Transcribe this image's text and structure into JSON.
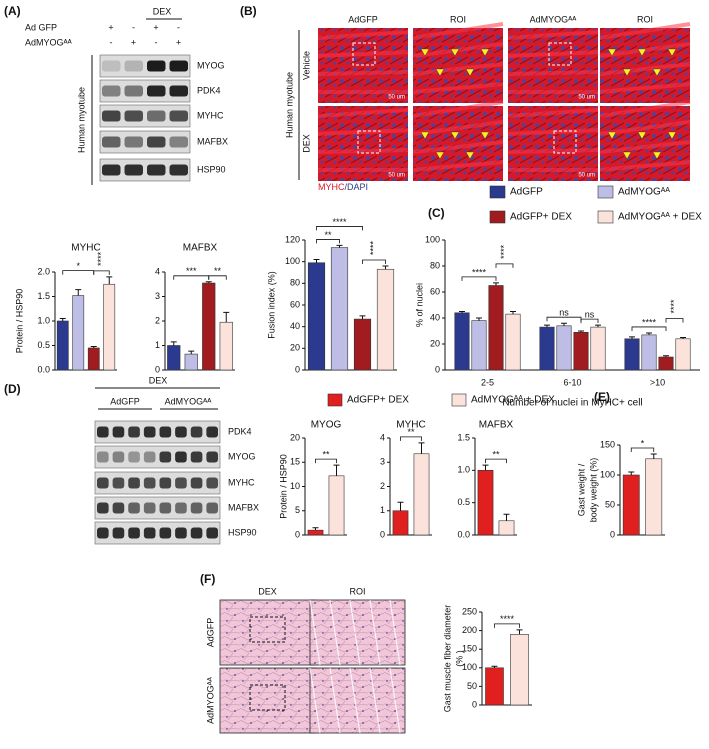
{
  "panel_labels": [
    "(A)",
    "(B)",
    "(C)",
    "(D)",
    "(E)",
    "(F)"
  ],
  "panel_A": {
    "header": "DEX",
    "treatments": [
      {
        "label": "Ad GFP",
        "signs": [
          "+",
          "-",
          "+",
          "-"
        ]
      },
      {
        "label": "AdMYOGᴬᴬ",
        "signs": [
          "-",
          "+",
          "-",
          "+"
        ]
      }
    ],
    "blots": [
      "MYOG",
      "PDK4",
      "MYHC",
      "MAFBX",
      "HSP90"
    ],
    "cell": "Human myotube"
  },
  "panel_B": {
    "columns": [
      "AdGFP",
      "ROI",
      "AdMYOGᴬᴬ",
      "ROI"
    ],
    "rows": [
      "Vehicle",
      "DEX"
    ],
    "cell": "Human myotube",
    "scale_bar": "50 um",
    "stain": [
      "MYHC",
      "/DAPI"
    ]
  },
  "panel_D": {
    "header": "DEX",
    "groups": [
      "AdGFP",
      "AdMYOGᴬᴬ"
    ],
    "blots": [
      "PDK4",
      "MYOG",
      "MYHC",
      "MAFBX",
      "HSP90"
    ],
    "legend": [
      {
        "name": "AdGFP+ DEX",
        "color": "#e0201e"
      },
      {
        "name": "AdMYOGᴬᴬ + DEX",
        "color": "#fbe3dc"
      }
    ]
  },
  "panel_F": {
    "columns": [
      "DEX",
      "ROI"
    ],
    "rows": [
      "AdGFP",
      "AdMYOGᴬᴬ"
    ]
  },
  "chart_data": [
    {
      "type": "bar",
      "title": "MYHC",
      "ylabel": [
        "Protein / HSP90"
      ],
      "values": [
        1.0,
        1.52,
        0.45,
        1.75
      ],
      "errors": [
        0.05,
        0.12,
        0.03,
        0.15
      ],
      "colors": [
        "#2b3a8f",
        "#bdbde6",
        "#a01c1f",
        "#fbe3dc"
      ],
      "ylim": [
        0,
        2
      ],
      "yticks": [
        {
          "value": 0,
          "label": "0.0"
        },
        0.5,
        {
          "value": 1,
          "label": "1.0"
        },
        1.5,
        {
          "value": 2,
          "label": "2.0"
        }
      ],
      "annotations": [
        "*",
        "****"
      ]
    },
    {
      "type": "bar",
      "title": "MAFBX",
      "values": [
        1.0,
        0.65,
        3.55,
        1.95
      ],
      "errors": [
        0.15,
        0.12,
        0.05,
        0.4
      ],
      "colors": [
        "#2b3a8f",
        "#bdbde6",
        "#a01c1f",
        "#fbe3dc"
      ],
      "ylim": [
        0,
        4
      ],
      "yticks": [
        0,
        1,
        2,
        3,
        4
      ],
      "annotations": [
        "***",
        "**"
      ]
    },
    {
      "type": "bar",
      "ylabel": [
        "Fusion index (%)"
      ],
      "values": [
        99,
        113,
        47,
        93
      ],
      "errors": [
        3,
        2,
        3,
        3
      ],
      "colors": [
        "#2b3a8f",
        "#bdbde6",
        "#a01c1f",
        "#fbe3dc"
      ],
      "ylim": [
        0,
        120
      ],
      "yticks": [
        0,
        20,
        40,
        60,
        80,
        100,
        120
      ],
      "annotations": [
        "**",
        "****",
        "****"
      ]
    },
    {
      "type": "bar",
      "ylabel": [
        "% of nuclei"
      ],
      "xlabel": "Number of nuclei in MyHC+ cell",
      "categories": [
        "2-5",
        "6-10",
        ">10"
      ],
      "series": [
        {
          "name": "AdGFP",
          "color": "#2b3a8f",
          "values": [
            44,
            33,
            24
          ],
          "errors": [
            1,
            1.5,
            1.5
          ]
        },
        {
          "name": "AdMYOGᴬᴬ",
          "color": "#bdbde6",
          "values": [
            38,
            34,
            27
          ],
          "errors": [
            2,
            2,
            1.5
          ]
        },
        {
          "name": "AdGFP+ DEX",
          "color": "#a01c1f",
          "values": [
            65,
            29,
            10
          ],
          "errors": [
            2,
            1,
            1
          ]
        },
        {
          "name": "AdMYOGᴬᴬ + DEX",
          "color": "#fbe3dc",
          "values": [
            43,
            33,
            24
          ],
          "errors": [
            2,
            1.5,
            1
          ]
        }
      ],
      "ylim": [
        0,
        100
      ],
      "yticks": [
        0,
        20,
        40,
        60,
        80,
        100
      ],
      "annotations": [
        "****",
        "****",
        "ns",
        "ns",
        "****",
        "****"
      ]
    },
    {
      "type": "bar",
      "title": "MYOG",
      "ylabel": [
        "Protein / HSP90"
      ],
      "values": [
        1,
        12.2
      ],
      "errors": [
        0.5,
        2.2
      ],
      "colors": [
        "#e0201e",
        "#fbe3dc"
      ],
      "ylim": [
        0,
        20
      ],
      "yticks": [
        0,
        5,
        10,
        15,
        20
      ],
      "annotations": [
        "**"
      ]
    },
    {
      "type": "bar",
      "title": "MYHC",
      "values": [
        1,
        3.35
      ],
      "errors": [
        0.35,
        0.45
      ],
      "colors": [
        "#e0201e",
        "#fbe3dc"
      ],
      "ylim": [
        0,
        4
      ],
      "yticks": [
        0,
        1,
        2,
        3,
        4
      ],
      "annotations": [
        "**"
      ]
    },
    {
      "type": "bar",
      "title": "MAFBX",
      "values": [
        1,
        0.22
      ],
      "errors": [
        0.08,
        0.1
      ],
      "colors": [
        "#e0201e",
        "#fbe3dc"
      ],
      "ylim": [
        0,
        1.5
      ],
      "yticks": [
        {
          "value": 0,
          "label": "0.0"
        },
        0.5,
        {
          "value": 1,
          "label": "1.0"
        },
        1.5
      ],
      "annotations": [
        "**"
      ]
    },
    {
      "type": "bar",
      "ylabel": [
        "Gast weight /",
        "body weight  (%)"
      ],
      "values": [
        100,
        127
      ],
      "errors": [
        5,
        8
      ],
      "colors": [
        "#e0201e",
        "#fbe3dc"
      ],
      "ylim": [
        0,
        150
      ],
      "yticks": [
        0,
        50,
        100,
        150
      ],
      "annotations": [
        "*"
      ]
    },
    {
      "type": "bar",
      "ylabel": [
        "Gast muscle fiber diameter",
        "(% )"
      ],
      "values": [
        100,
        190
      ],
      "errors": [
        4,
        12
      ],
      "colors": [
        "#e0201e",
        "#fbe3dc"
      ],
      "ylim": [
        0,
        250
      ],
      "yticks": [
        0,
        50,
        100,
        150,
        200,
        250
      ],
      "annotations": [
        "****"
      ]
    }
  ]
}
